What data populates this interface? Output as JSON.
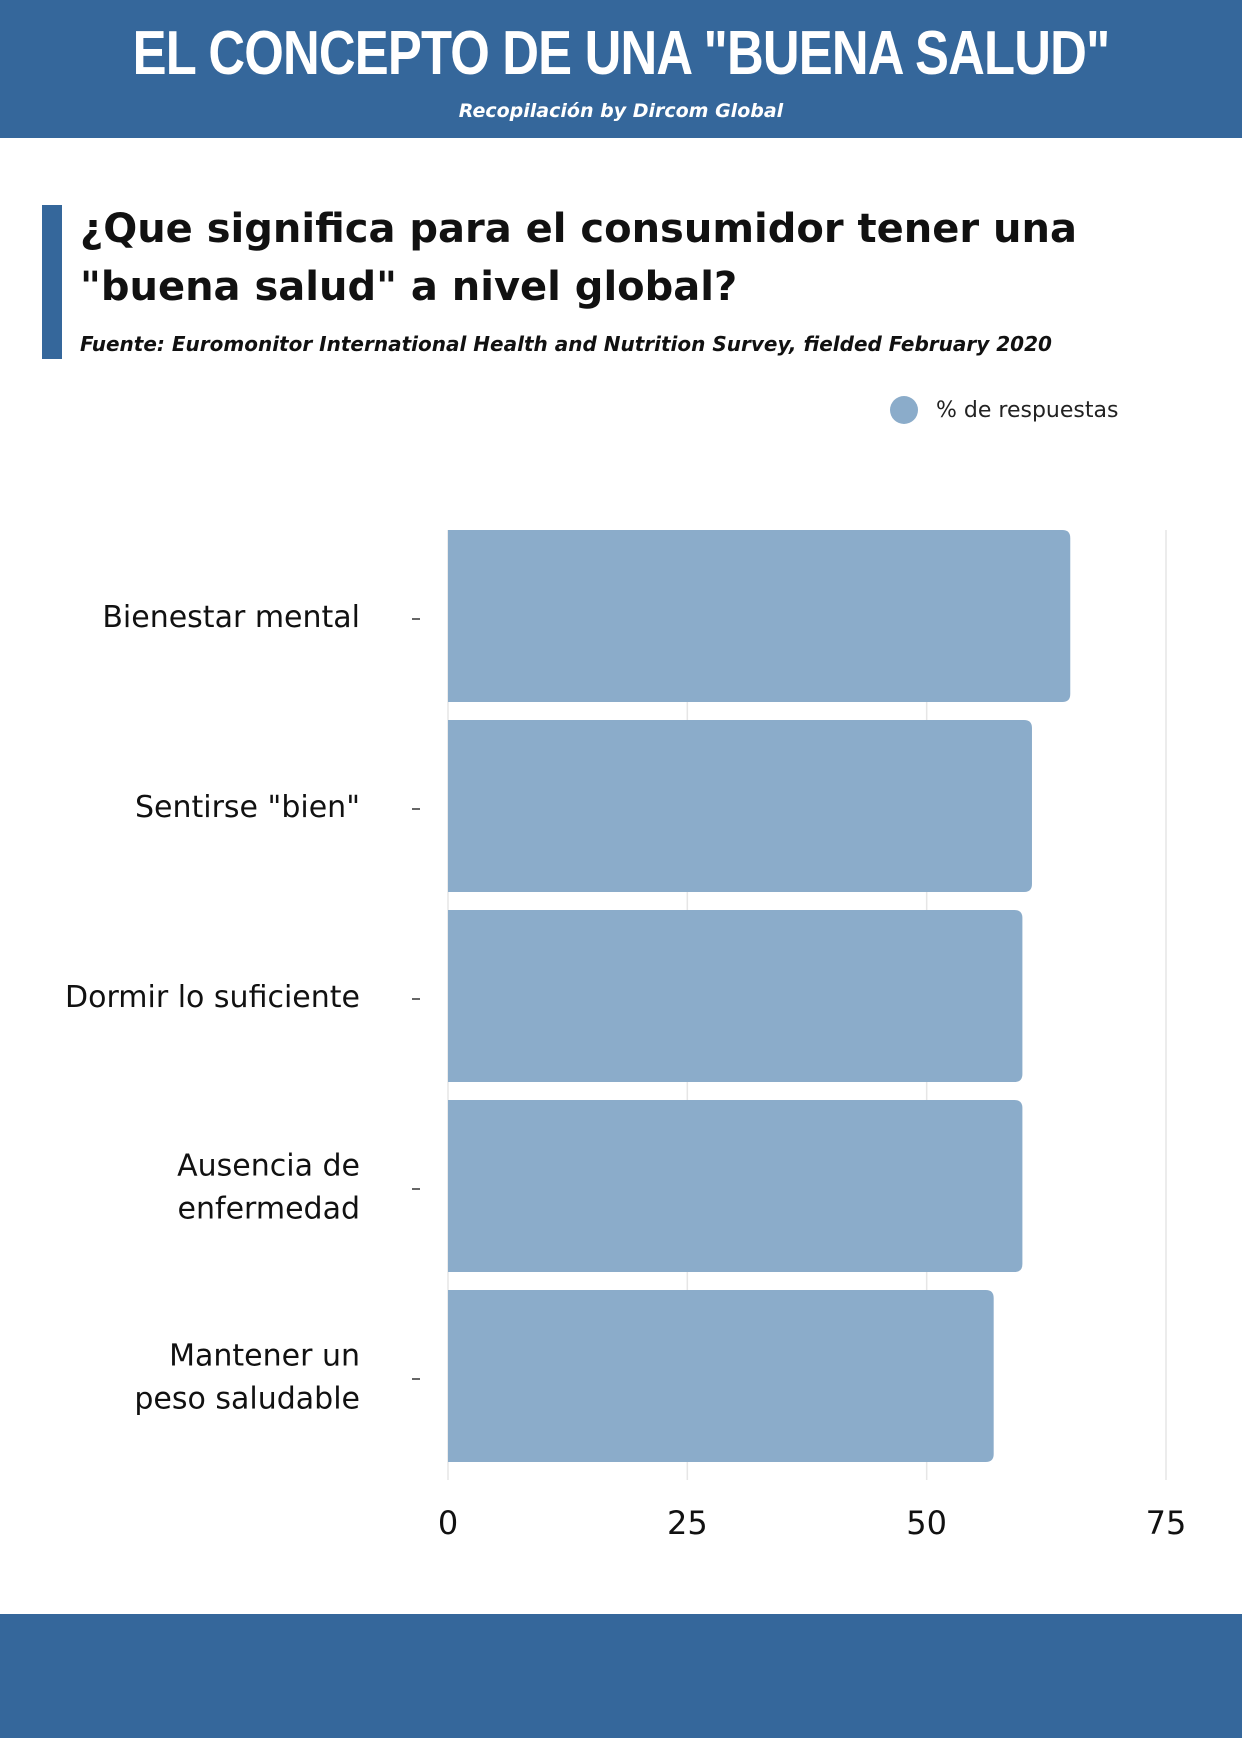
{
  "header": {
    "title": "EL CONCEPTO DE UNA \"BUENA SALUD\"",
    "subtitle": "Recopilación by Dircom Global"
  },
  "question": "¿Que significa para el consumidor tener una \"buena salud\" a nivel global?",
  "source": "Fuente: Euromonitor International Health and Nutrition Survey, fielded February 2020",
  "legend": {
    "label": "% de respuestas"
  },
  "colors": {
    "header": "#35679b",
    "bar": "#8bacca",
    "grid": "#e6e6e6"
  },
  "chart_data": {
    "type": "bar",
    "orientation": "horizontal",
    "categories": [
      [
        "Bienestar mental"
      ],
      [
        "Sentirse \"bien\""
      ],
      [
        "Dormir lo suficiente"
      ],
      [
        "Ausencia de",
        "enfermedad"
      ],
      [
        "Mantener un",
        "peso saludable"
      ]
    ],
    "series": [
      {
        "name": "% de respuestas",
        "values": [
          65,
          61,
          60,
          60,
          57
        ]
      }
    ],
    "xlim": [
      0,
      75
    ],
    "xticks": [
      0,
      25,
      50,
      75
    ],
    "grid": true,
    "legend_position": "top-right"
  }
}
